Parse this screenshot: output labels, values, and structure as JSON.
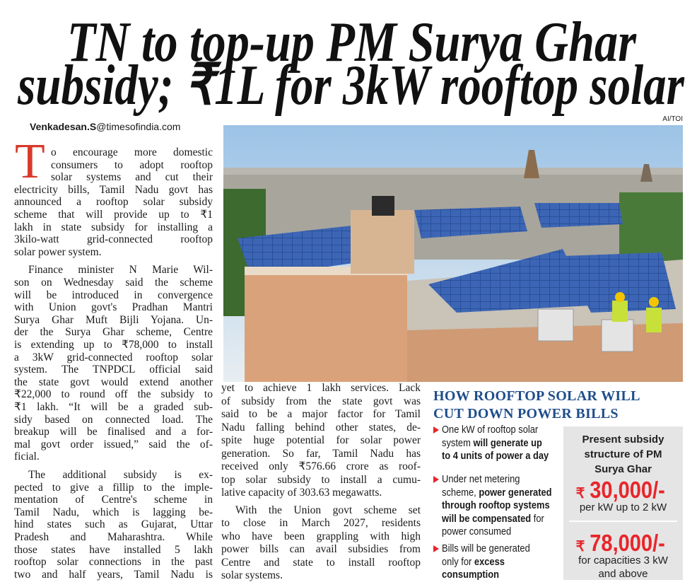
{
  "headline": {
    "lines": [
      "TN to top-up PM Surya Ghar",
      "subsidy; ₹1L for 3kW rooftop solar"
    ]
  },
  "credit": "AI/TOI",
  "byline": {
    "name": "Venkadesan.S",
    "email": "@timesofindia.com"
  },
  "article": {
    "drop_cap": "T",
    "columns": [
      {
        "paragraphs": [
          {
            "lines": [
              "o encourage more domestic",
              "consumers to adopt rooftop",
              "solar systems and cut their",
              "electricity bills, Tamil Nadu govt has",
              "announced a rooftop solar subsidy",
              "scheme that will provide up to ₹1",
              "lakh in state subsidy for installing a",
              "3kilo-watt grid-connected rooftop",
              "solar power system."
            ]
          },
          {
            "lines": [
              "Finance minister N Marie Wil-",
              "son on Wednesday said the scheme",
              "will be introduced in convergence",
              "with Union govt's Pradhan Mantri",
              "Surya Ghar Muft Bijli Yojana. Un-",
              "der the Surya Ghar scheme, Centre",
              "is extending up to ₹78,000 to install",
              "a 3kW grid-connected rooftop solar",
              "system. The TNPDCL official said",
              "the state govt would extend another",
              "₹22,000 to round off the subsidy to",
              "₹1 lakh. “It will be a graded sub-",
              "sidy based on connected load. The",
              "breakup will be finalised and a for-",
              "mal govt order issued,” said the of-",
              "ficial."
            ]
          },
          {
            "lines": [
              "The additional subsidy is ex-",
              "pected to give a fillip to the imple-",
              "mentation of Centre's scheme in",
              "Tamil Nadu, which is lagging be-",
              "hind states such as Gujarat, Uttar",
              "Pradesh and Maharashtra. While",
              "those states have installed 5 lakh",
              "rooftop solar connections in the past",
              "two and half years, Tamil Nadu is"
            ]
          }
        ]
      },
      {
        "paragraphs": [
          {
            "lines": [
              "yet to achieve 1 lakh services. Lack",
              "of subsidy from the state govt was",
              "said to be a major factor for Tamil",
              "Nadu falling behind other states, de-",
              "spite huge potential for solar power",
              "generation. So far, Tamil Nadu has",
              "received only ₹576.66 crore as roof-",
              "top solar subsidy to install a cumu-",
              "lative capacity of 303.63 megawatts."
            ]
          },
          {
            "lines": [
              "With the Union govt scheme set",
              "to close in March 2027, residents",
              "who have been grappling with high",
              "power bills can avail subsidies from",
              "Centre and state to install rooftop",
              "solar systems."
            ]
          }
        ]
      }
    ]
  },
  "sidebar": {
    "heading": {
      "lines": [
        "HOW ROOFTOP SOLAR WILL",
        "CUT DOWN POWER BILLS"
      ]
    },
    "bullets": [
      {
        "lines": [
          [
            {
              "text": "One kW of rooftop solar",
              "bold": false
            }
          ],
          [
            {
              "text": "system ",
              "bold": false
            },
            {
              "text": "will generate up",
              "bold": true
            }
          ],
          [
            {
              "text": "to 4 units of power a day",
              "bold": true
            }
          ]
        ]
      },
      {
        "lines": [
          [
            {
              "text": "Under net metering",
              "bold": false
            }
          ],
          [
            {
              "text": "scheme, ",
              "bold": false
            },
            {
              "text": "power generated",
              "bold": true
            }
          ],
          [
            {
              "text": "through rooftop systems",
              "bold": true
            }
          ],
          [
            {
              "text": "will be compensated",
              "bold": true
            },
            {
              "text": " for",
              "bold": false
            }
          ],
          [
            {
              "text": "power consumed",
              "bold": false
            }
          ]
        ]
      },
      {
        "lines": [
          [
            {
              "text": "Bills will be generated",
              "bold": false
            }
          ],
          [
            {
              "text": "only for ",
              "bold": false
            },
            {
              "text": "excess",
              "bold": true
            }
          ],
          [
            {
              "text": "consumption",
              "bold": true
            }
          ]
        ]
      }
    ],
    "box": {
      "title": {
        "lines": [
          "Present subsidy",
          "structure of PM",
          "Surya Ghar"
        ]
      },
      "tiers": [
        {
          "currency": "₹",
          "amount": "30,000/-",
          "lines": [
            "per kW up to 2 kW"
          ]
        },
        {
          "currency": "₹",
          "amount": "78,000/-",
          "lines": [
            "for capacities 3 kW",
            "and above"
          ]
        }
      ]
    }
  }
}
